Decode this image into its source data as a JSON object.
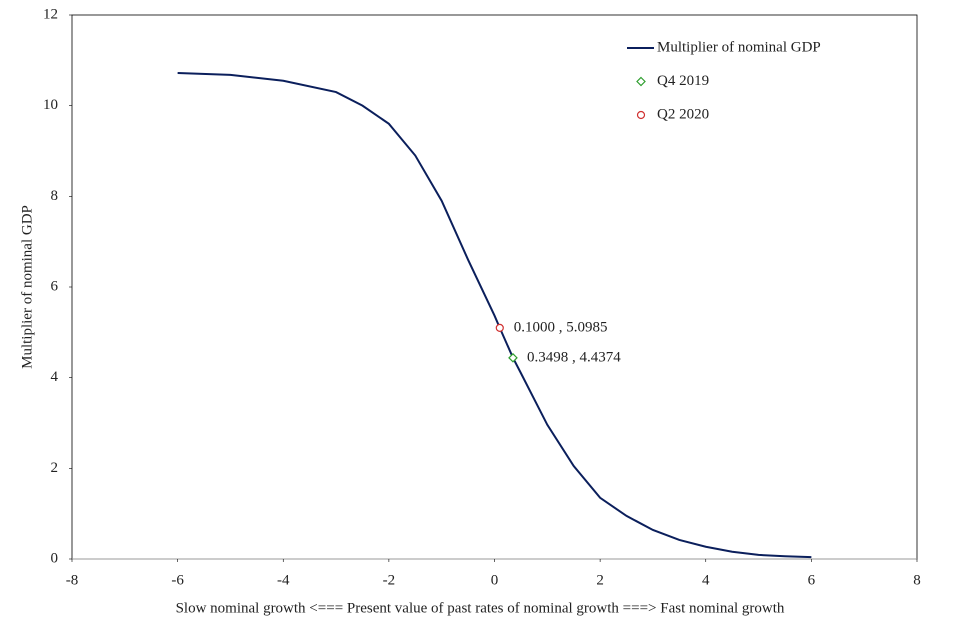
{
  "chart_data": {
    "type": "line",
    "xlabel": "Slow nominal  growth <=== Present value  of past rates of nominal  growth ===> Fast nominal growth",
    "ylabel": "Multiplier  of nominal GDP",
    "xlim": [
      -8,
      8
    ],
    "xticks": [
      -8,
      -6,
      -4,
      -2,
      0,
      2,
      4,
      6,
      8
    ],
    "ylim": [
      0,
      12
    ],
    "yticks": [
      0,
      2,
      4,
      6,
      8,
      10,
      12
    ],
    "negative_tick_color": "#c00000",
    "legend": "upper right",
    "grid": false,
    "series": [
      {
        "name": "Multiplier of nominal GDP",
        "color": "#0b1f5c",
        "marker": "none",
        "x": [
          -6,
          -5,
          -4,
          -3,
          -2.5,
          -2,
          -1.5,
          -1,
          -0.5,
          0,
          0.1,
          0.35,
          0.5,
          1,
          1.5,
          2,
          2.5,
          3,
          3.5,
          4,
          4.5,
          5,
          5.5,
          6
        ],
        "values": [
          10.72,
          10.68,
          10.55,
          10.3,
          10.0,
          9.6,
          8.9,
          7.9,
          6.6,
          5.37,
          5.0985,
          4.4374,
          4.1,
          2.96,
          2.05,
          1.35,
          0.95,
          0.64,
          0.42,
          0.27,
          0.16,
          0.09,
          0.06,
          0.04
        ]
      },
      {
        "name": "Q4 2019",
        "color": "#2e9e2e",
        "marker": "diamond",
        "x": [
          0.3498
        ],
        "values": [
          4.4374
        ],
        "value_labels": [
          "0.3498 , 4.4374"
        ]
      },
      {
        "name": "Q2 2020",
        "color": "#d03030",
        "marker": "circle",
        "x": [
          0.1
        ],
        "values": [
          5.0985
        ],
        "value_labels": [
          "0.1000 , 5.0985"
        ]
      }
    ]
  }
}
